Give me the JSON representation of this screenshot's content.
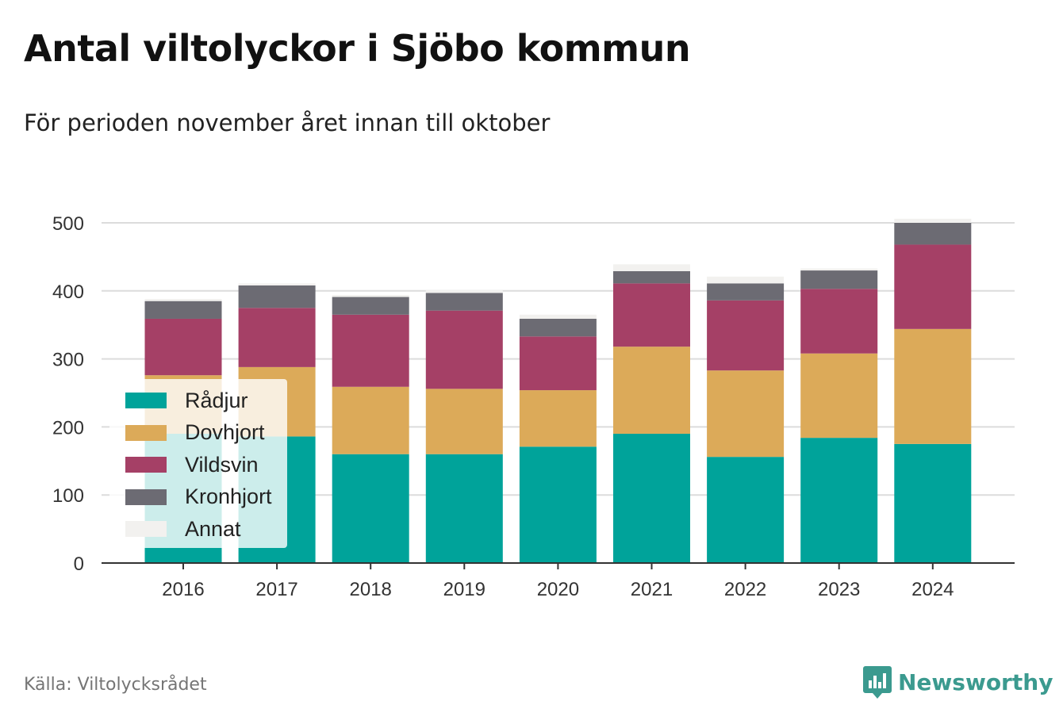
{
  "title": "Antal viltolyckor i Sjöbo kommun",
  "subtitle": "För perioden november året innan till oktober",
  "source": "Källa: Viltolycksrådet",
  "brand": "Newsworthy",
  "chart_data": {
    "type": "bar",
    "stacked": true,
    "categories": [
      "2016",
      "2017",
      "2018",
      "2019",
      "2020",
      "2021",
      "2022",
      "2023",
      "2024"
    ],
    "series": [
      {
        "name": "Rådjur",
        "color": "#00a39a",
        "values": [
          190,
          186,
          160,
          160,
          171,
          190,
          156,
          184,
          175
        ]
      },
      {
        "name": "Dovhjort",
        "color": "#dcaa59",
        "values": [
          86,
          102,
          99,
          96,
          83,
          128,
          127,
          124,
          169
        ]
      },
      {
        "name": "Vildsvin",
        "color": "#a54066",
        "values": [
          83,
          87,
          106,
          115,
          79,
          93,
          103,
          95,
          124
        ]
      },
      {
        "name": "Kronhjort",
        "color": "#6c6b73",
        "values": [
          26,
          33,
          26,
          26,
          26,
          18,
          25,
          27,
          32
        ]
      },
      {
        "name": "Annat",
        "color": "#f2f1ef",
        "values": [
          3,
          3,
          3,
          4,
          6,
          10,
          10,
          3,
          6
        ]
      }
    ],
    "ylim": [
      0,
      500
    ],
    "yticks": [
      "0",
      "100",
      "200",
      "300",
      "400",
      "500"
    ],
    "grid": true,
    "legend_position": "bottom-left"
  }
}
